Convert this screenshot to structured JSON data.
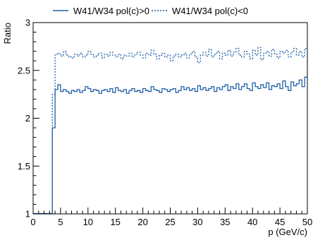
{
  "chart_data": {
    "type": "line",
    "xlabel": "p (GeV/c)",
    "ylabel": "Ratio",
    "xlim": [
      0,
      50
    ],
    "ylim": [
      1,
      3
    ],
    "xticks": [
      0,
      5,
      10,
      15,
      20,
      25,
      30,
      35,
      40,
      45,
      50
    ],
    "xtick_labels": [
      "0",
      "5",
      "10",
      "15",
      "20",
      "25",
      "30",
      "35",
      "40",
      "45",
      "50"
    ],
    "yticks": [
      1,
      1.5,
      2,
      2.5,
      3
    ],
    "ytick_labels": [
      "1",
      "1.5",
      "2",
      "2.5",
      "3"
    ],
    "grid": false,
    "legend_position": "top",
    "series_colors": [
      "#1f5fa8",
      "#1f5fa8"
    ],
    "series": [
      {
        "name": "W41/W34 pol(c)>0",
        "style": "solid",
        "bin_edges": [
          3.5,
          4,
          4.5,
          5,
          5.5,
          6,
          6.5,
          7,
          7.5,
          8,
          8.5,
          9,
          9.5,
          10,
          10.5,
          11,
          11.5,
          12,
          12.5,
          13,
          13.5,
          14,
          14.5,
          15,
          15.5,
          16,
          16.5,
          17,
          17.5,
          18,
          18.5,
          19,
          19.5,
          20,
          20.5,
          21,
          21.5,
          22,
          22.5,
          23,
          23.5,
          24,
          24.5,
          25,
          25.5,
          26,
          26.5,
          27,
          27.5,
          28,
          28.5,
          29,
          29.5,
          30,
          30.5,
          31,
          31.5,
          32,
          32.5,
          33,
          33.5,
          34,
          34.5,
          35,
          35.5,
          36,
          36.5,
          37,
          37.5,
          38,
          38.5,
          39,
          39.5,
          40,
          40.5,
          41,
          41.5,
          42,
          42.5,
          43,
          43.5,
          44,
          44.5,
          45,
          45.5,
          46,
          46.5,
          47,
          47.5,
          48,
          48.5,
          49,
          49.5,
          50
        ],
        "values": [
          1.9,
          2.3,
          2.35,
          2.28,
          2.3,
          2.28,
          2.26,
          2.29,
          2.28,
          2.3,
          2.27,
          2.29,
          2.33,
          2.31,
          2.28,
          2.3,
          2.29,
          2.26,
          2.29,
          2.3,
          2.28,
          2.31,
          2.27,
          2.32,
          2.29,
          2.28,
          2.3,
          2.26,
          2.29,
          2.31,
          2.28,
          2.29,
          2.27,
          2.31,
          2.29,
          2.28,
          2.33,
          2.3,
          2.29,
          2.27,
          2.31,
          2.3,
          2.28,
          2.3,
          2.31,
          2.27,
          2.29,
          2.33,
          2.3,
          2.32,
          2.29,
          2.31,
          2.28,
          2.34,
          2.3,
          2.32,
          2.29,
          2.31,
          2.33,
          2.28,
          2.32,
          2.3,
          2.33,
          2.35,
          2.29,
          2.33,
          2.31,
          2.36,
          2.3,
          2.33,
          2.36,
          2.31,
          2.29,
          2.37,
          2.33,
          2.31,
          2.35,
          2.32,
          2.37,
          2.3,
          2.34,
          2.33,
          2.36,
          2.31,
          2.39,
          2.33,
          2.29,
          2.38,
          2.34,
          2.36,
          2.4,
          2.33,
          2.43
        ]
      },
      {
        "name": "W41/W34 pol(c)<0",
        "style": "dotted",
        "bin_edges": [
          3.5,
          4,
          4.5,
          5,
          5.5,
          6,
          6.5,
          7,
          7.5,
          8,
          8.5,
          9,
          9.5,
          10,
          10.5,
          11,
          11.5,
          12,
          12.5,
          13,
          13.5,
          14,
          14.5,
          15,
          15.5,
          16,
          16.5,
          17,
          17.5,
          18,
          18.5,
          19,
          19.5,
          20,
          20.5,
          21,
          21.5,
          22,
          22.5,
          23,
          23.5,
          24,
          24.5,
          25,
          25.5,
          26,
          26.5,
          27,
          27.5,
          28,
          28.5,
          29,
          29.5,
          30,
          30.5,
          31,
          31.5,
          32,
          32.5,
          33,
          33.5,
          34,
          34.5,
          35,
          35.5,
          36,
          36.5,
          37,
          37.5,
          38,
          38.5,
          39,
          39.5,
          40,
          40.5,
          41,
          41.5,
          42,
          42.5,
          43,
          43.5,
          44,
          44.5,
          45,
          45.5,
          46,
          46.5,
          47,
          47.5,
          48,
          48.5,
          49,
          49.5,
          50
        ],
        "values": [
          2.25,
          2.67,
          2.68,
          2.65,
          2.7,
          2.66,
          2.64,
          2.63,
          2.67,
          2.65,
          2.68,
          2.64,
          2.66,
          2.7,
          2.67,
          2.64,
          2.66,
          2.68,
          2.63,
          2.67,
          2.65,
          2.69,
          2.66,
          2.64,
          2.67,
          2.62,
          2.66,
          2.65,
          2.68,
          2.64,
          2.67,
          2.69,
          2.66,
          2.63,
          2.68,
          2.66,
          2.71,
          2.67,
          2.62,
          2.66,
          2.68,
          2.64,
          2.66,
          2.6,
          2.65,
          2.67,
          2.64,
          2.66,
          2.68,
          2.63,
          2.67,
          2.7,
          2.64,
          2.58,
          2.66,
          2.69,
          2.65,
          2.72,
          2.64,
          2.67,
          2.7,
          2.62,
          2.68,
          2.66,
          2.71,
          2.65,
          2.69,
          2.73,
          2.66,
          2.64,
          2.7,
          2.67,
          2.62,
          2.71,
          2.66,
          2.74,
          2.61,
          2.68,
          2.7,
          2.65,
          2.72,
          2.67,
          2.63,
          2.7,
          2.68,
          2.71,
          2.64,
          2.69,
          2.73,
          2.66,
          2.7,
          2.64,
          2.73
        ]
      }
    ]
  }
}
